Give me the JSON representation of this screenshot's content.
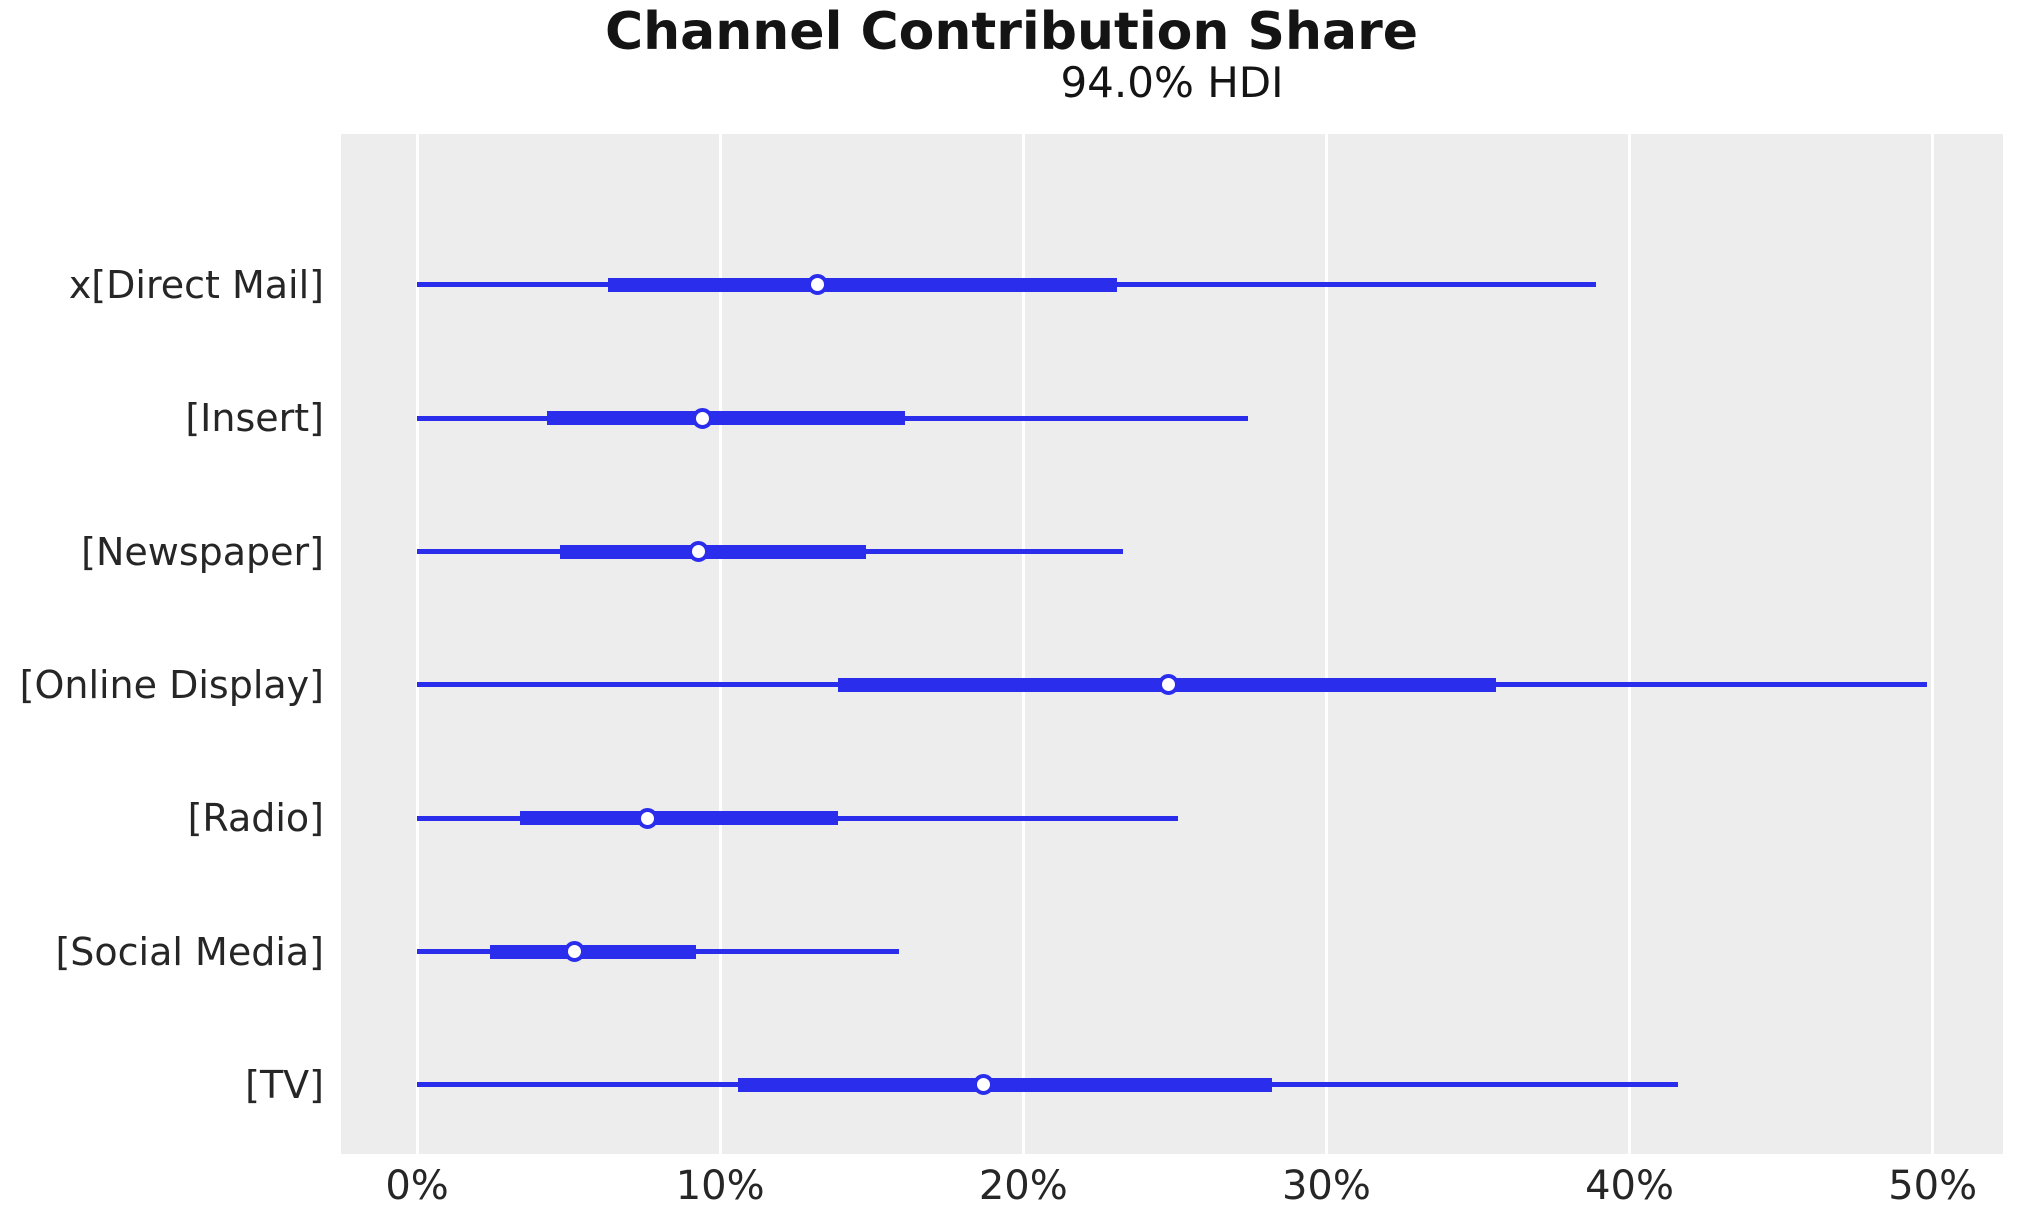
{
  "title": "Channel Contribution Share",
  "subtitle": "94.0% HDI",
  "chart_data": {
    "type": "forest",
    "orientation": "horizontal",
    "title": "Channel Contribution Share",
    "subtitle": "94.0% HDI",
    "hdi_probability": "94.0%",
    "xlabel": "",
    "ylabel": "",
    "unit": "%",
    "xlim": [
      -2.51,
      52.32
    ],
    "x_ticks": [
      0,
      10,
      20,
      30,
      40,
      50
    ],
    "x_tick_labels": [
      "0%",
      "10%",
      "20%",
      "30%",
      "40%",
      "50%"
    ],
    "grid": "vertical white gridlines on",
    "legend_position": "none",
    "series": [
      {
        "label": "x[Direct Mail]",
        "hdi_low": 0.0,
        "hdi_high": 38.9,
        "band_low": 6.3,
        "band_high": 23.1,
        "median": 13.2
      },
      {
        "label": "[Insert]",
        "hdi_low": 0.0,
        "hdi_high": 27.4,
        "band_low": 4.3,
        "band_high": 16.1,
        "median": 9.4
      },
      {
        "label": "[Newspaper]",
        "hdi_low": 0.0,
        "hdi_high": 23.3,
        "band_low": 4.7,
        "band_high": 14.8,
        "median": 9.3
      },
      {
        "label": "[Online Display]",
        "hdi_low": 0.0,
        "hdi_high": 49.8,
        "band_low": 13.9,
        "band_high": 35.6,
        "median": 24.8
      },
      {
        "label": "[Radio]",
        "hdi_low": 0.0,
        "hdi_high": 25.1,
        "band_low": 3.4,
        "band_high": 13.9,
        "median": 7.6
      },
      {
        "label": "[Social Media]",
        "hdi_low": 0.0,
        "hdi_high": 15.9,
        "band_low": 2.4,
        "band_high": 9.2,
        "median": 5.2
      },
      {
        "label": "[TV]",
        "hdi_low": 0.0,
        "hdi_high": 41.6,
        "band_low": 10.6,
        "band_high": 28.2,
        "median": 18.7
      }
    ],
    "colors": {
      "line": "#2a2eec",
      "marker_face": "#ffffff",
      "axes_background": "#ededed",
      "gridline": "#ffffff",
      "text": "#141414"
    }
  }
}
